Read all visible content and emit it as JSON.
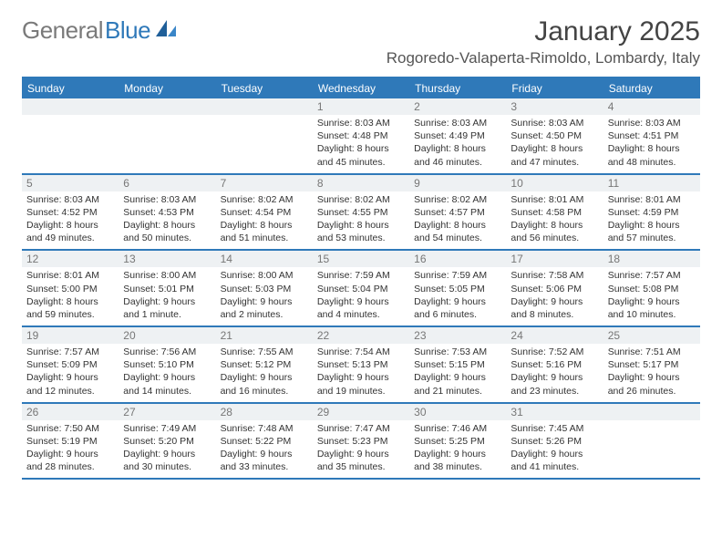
{
  "brand": {
    "part1": "General",
    "part2": "Blue"
  },
  "title": {
    "month_year": "January 2025",
    "location": "Rogoredo-Valaperta-Rimoldo, Lombardy, Italy"
  },
  "colors": {
    "accent": "#2f79b9",
    "header_bg": "#2f79b9",
    "daynum_bg": "#eef1f3",
    "text": "#333333"
  },
  "days_of_week": [
    "Sunday",
    "Monday",
    "Tuesday",
    "Wednesday",
    "Thursday",
    "Friday",
    "Saturday"
  ],
  "weeks": [
    [
      {
        "n": "",
        "sunrise": "",
        "sunset": "",
        "daylight1": "",
        "daylight2": ""
      },
      {
        "n": "",
        "sunrise": "",
        "sunset": "",
        "daylight1": "",
        "daylight2": ""
      },
      {
        "n": "",
        "sunrise": "",
        "sunset": "",
        "daylight1": "",
        "daylight2": ""
      },
      {
        "n": "1",
        "sunrise": "Sunrise: 8:03 AM",
        "sunset": "Sunset: 4:48 PM",
        "daylight1": "Daylight: 8 hours",
        "daylight2": "and 45 minutes."
      },
      {
        "n": "2",
        "sunrise": "Sunrise: 8:03 AM",
        "sunset": "Sunset: 4:49 PM",
        "daylight1": "Daylight: 8 hours",
        "daylight2": "and 46 minutes."
      },
      {
        "n": "3",
        "sunrise": "Sunrise: 8:03 AM",
        "sunset": "Sunset: 4:50 PM",
        "daylight1": "Daylight: 8 hours",
        "daylight2": "and 47 minutes."
      },
      {
        "n": "4",
        "sunrise": "Sunrise: 8:03 AM",
        "sunset": "Sunset: 4:51 PM",
        "daylight1": "Daylight: 8 hours",
        "daylight2": "and 48 minutes."
      }
    ],
    [
      {
        "n": "5",
        "sunrise": "Sunrise: 8:03 AM",
        "sunset": "Sunset: 4:52 PM",
        "daylight1": "Daylight: 8 hours",
        "daylight2": "and 49 minutes."
      },
      {
        "n": "6",
        "sunrise": "Sunrise: 8:03 AM",
        "sunset": "Sunset: 4:53 PM",
        "daylight1": "Daylight: 8 hours",
        "daylight2": "and 50 minutes."
      },
      {
        "n": "7",
        "sunrise": "Sunrise: 8:02 AM",
        "sunset": "Sunset: 4:54 PM",
        "daylight1": "Daylight: 8 hours",
        "daylight2": "and 51 minutes."
      },
      {
        "n": "8",
        "sunrise": "Sunrise: 8:02 AM",
        "sunset": "Sunset: 4:55 PM",
        "daylight1": "Daylight: 8 hours",
        "daylight2": "and 53 minutes."
      },
      {
        "n": "9",
        "sunrise": "Sunrise: 8:02 AM",
        "sunset": "Sunset: 4:57 PM",
        "daylight1": "Daylight: 8 hours",
        "daylight2": "and 54 minutes."
      },
      {
        "n": "10",
        "sunrise": "Sunrise: 8:01 AM",
        "sunset": "Sunset: 4:58 PM",
        "daylight1": "Daylight: 8 hours",
        "daylight2": "and 56 minutes."
      },
      {
        "n": "11",
        "sunrise": "Sunrise: 8:01 AM",
        "sunset": "Sunset: 4:59 PM",
        "daylight1": "Daylight: 8 hours",
        "daylight2": "and 57 minutes."
      }
    ],
    [
      {
        "n": "12",
        "sunrise": "Sunrise: 8:01 AM",
        "sunset": "Sunset: 5:00 PM",
        "daylight1": "Daylight: 8 hours",
        "daylight2": "and 59 minutes."
      },
      {
        "n": "13",
        "sunrise": "Sunrise: 8:00 AM",
        "sunset": "Sunset: 5:01 PM",
        "daylight1": "Daylight: 9 hours",
        "daylight2": "and 1 minute."
      },
      {
        "n": "14",
        "sunrise": "Sunrise: 8:00 AM",
        "sunset": "Sunset: 5:03 PM",
        "daylight1": "Daylight: 9 hours",
        "daylight2": "and 2 minutes."
      },
      {
        "n": "15",
        "sunrise": "Sunrise: 7:59 AM",
        "sunset": "Sunset: 5:04 PM",
        "daylight1": "Daylight: 9 hours",
        "daylight2": "and 4 minutes."
      },
      {
        "n": "16",
        "sunrise": "Sunrise: 7:59 AM",
        "sunset": "Sunset: 5:05 PM",
        "daylight1": "Daylight: 9 hours",
        "daylight2": "and 6 minutes."
      },
      {
        "n": "17",
        "sunrise": "Sunrise: 7:58 AM",
        "sunset": "Sunset: 5:06 PM",
        "daylight1": "Daylight: 9 hours",
        "daylight2": "and 8 minutes."
      },
      {
        "n": "18",
        "sunrise": "Sunrise: 7:57 AM",
        "sunset": "Sunset: 5:08 PM",
        "daylight1": "Daylight: 9 hours",
        "daylight2": "and 10 minutes."
      }
    ],
    [
      {
        "n": "19",
        "sunrise": "Sunrise: 7:57 AM",
        "sunset": "Sunset: 5:09 PM",
        "daylight1": "Daylight: 9 hours",
        "daylight2": "and 12 minutes."
      },
      {
        "n": "20",
        "sunrise": "Sunrise: 7:56 AM",
        "sunset": "Sunset: 5:10 PM",
        "daylight1": "Daylight: 9 hours",
        "daylight2": "and 14 minutes."
      },
      {
        "n": "21",
        "sunrise": "Sunrise: 7:55 AM",
        "sunset": "Sunset: 5:12 PM",
        "daylight1": "Daylight: 9 hours",
        "daylight2": "and 16 minutes."
      },
      {
        "n": "22",
        "sunrise": "Sunrise: 7:54 AM",
        "sunset": "Sunset: 5:13 PM",
        "daylight1": "Daylight: 9 hours",
        "daylight2": "and 19 minutes."
      },
      {
        "n": "23",
        "sunrise": "Sunrise: 7:53 AM",
        "sunset": "Sunset: 5:15 PM",
        "daylight1": "Daylight: 9 hours",
        "daylight2": "and 21 minutes."
      },
      {
        "n": "24",
        "sunrise": "Sunrise: 7:52 AM",
        "sunset": "Sunset: 5:16 PM",
        "daylight1": "Daylight: 9 hours",
        "daylight2": "and 23 minutes."
      },
      {
        "n": "25",
        "sunrise": "Sunrise: 7:51 AM",
        "sunset": "Sunset: 5:17 PM",
        "daylight1": "Daylight: 9 hours",
        "daylight2": "and 26 minutes."
      }
    ],
    [
      {
        "n": "26",
        "sunrise": "Sunrise: 7:50 AM",
        "sunset": "Sunset: 5:19 PM",
        "daylight1": "Daylight: 9 hours",
        "daylight2": "and 28 minutes."
      },
      {
        "n": "27",
        "sunrise": "Sunrise: 7:49 AM",
        "sunset": "Sunset: 5:20 PM",
        "daylight1": "Daylight: 9 hours",
        "daylight2": "and 30 minutes."
      },
      {
        "n": "28",
        "sunrise": "Sunrise: 7:48 AM",
        "sunset": "Sunset: 5:22 PM",
        "daylight1": "Daylight: 9 hours",
        "daylight2": "and 33 minutes."
      },
      {
        "n": "29",
        "sunrise": "Sunrise: 7:47 AM",
        "sunset": "Sunset: 5:23 PM",
        "daylight1": "Daylight: 9 hours",
        "daylight2": "and 35 minutes."
      },
      {
        "n": "30",
        "sunrise": "Sunrise: 7:46 AM",
        "sunset": "Sunset: 5:25 PM",
        "daylight1": "Daylight: 9 hours",
        "daylight2": "and 38 minutes."
      },
      {
        "n": "31",
        "sunrise": "Sunrise: 7:45 AM",
        "sunset": "Sunset: 5:26 PM",
        "daylight1": "Daylight: 9 hours",
        "daylight2": "and 41 minutes."
      },
      {
        "n": "",
        "sunrise": "",
        "sunset": "",
        "daylight1": "",
        "daylight2": ""
      }
    ]
  ]
}
